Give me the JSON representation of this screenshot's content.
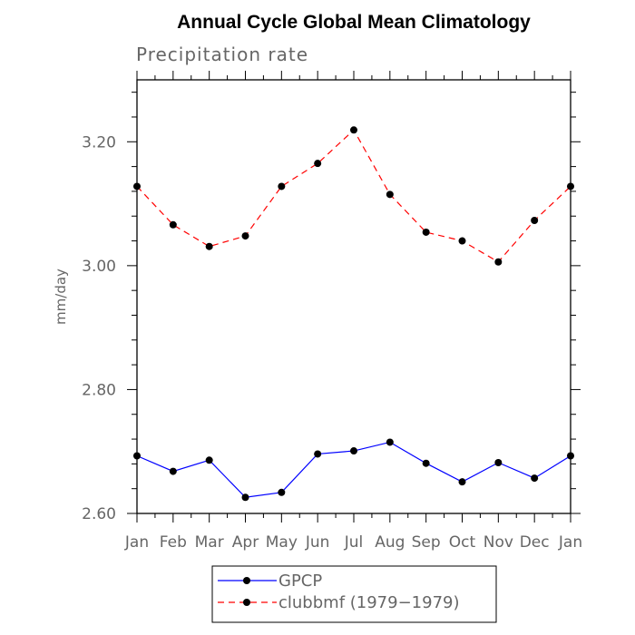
{
  "chart_data": {
    "type": "line",
    "title": "Annual Cycle Global Mean Climatology",
    "subtitle": "Precipitation rate",
    "xlabel": "",
    "ylabel": "mm/day",
    "categories": [
      "Jan",
      "Feb",
      "Mar",
      "Apr",
      "May",
      "Jun",
      "Jul",
      "Aug",
      "Sep",
      "Oct",
      "Nov",
      "Dec",
      "Jan"
    ],
    "ylim": [
      2.6,
      3.3
    ],
    "yticks_major": [
      "2.60",
      "2.80",
      "3.00",
      "3.20"
    ],
    "series": [
      {
        "name": "GPCP",
        "color": "#0000ff",
        "dash": "solid",
        "values": [
          2.693,
          2.668,
          2.686,
          2.626,
          2.634,
          2.696,
          2.701,
          2.715,
          2.681,
          2.651,
          2.682,
          2.657,
          2.693
        ]
      },
      {
        "name": "clubbmf (1979−1979)",
        "color": "#ff0000",
        "dash": "dashed",
        "values": [
          3.128,
          3.066,
          3.031,
          3.048,
          3.128,
          3.165,
          3.219,
          3.115,
          3.054,
          3.04,
          3.006,
          3.073,
          3.128
        ]
      }
    ],
    "legend_position": "bottom-center",
    "grid": false
  }
}
